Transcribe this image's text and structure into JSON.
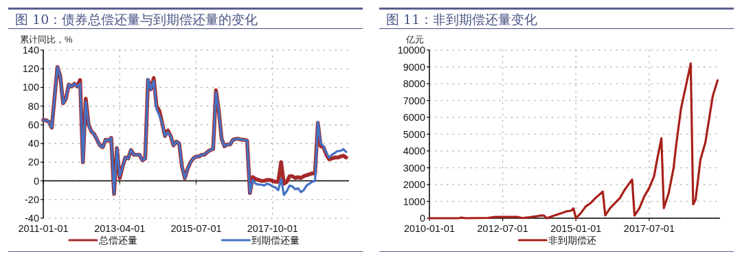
{
  "chart_data": [
    {
      "type": "line",
      "title": "图 10：债券总偿还量与到期偿还量的变化",
      "ylabel": "累计同比，%",
      "x": [
        "2011-01",
        "2011-02",
        "2011-03",
        "2011-04",
        "2011-05",
        "2011-06",
        "2011-07",
        "2011-08",
        "2011-09",
        "2011-10",
        "2011-11",
        "2011-12",
        "2012-01",
        "2012-02",
        "2012-03",
        "2012-04",
        "2012-05",
        "2012-06",
        "2012-07",
        "2012-08",
        "2012-09",
        "2012-10",
        "2012-11",
        "2012-12",
        "2013-01",
        "2013-02",
        "2013-03",
        "2013-04",
        "2013-05",
        "2013-06",
        "2013-07",
        "2013-08",
        "2013-09",
        "2013-10",
        "2013-11",
        "2013-12",
        "2014-01",
        "2014-02",
        "2014-03",
        "2014-04",
        "2014-05",
        "2014-06",
        "2014-07",
        "2014-08",
        "2014-09",
        "2014-10",
        "2014-11",
        "2014-12",
        "2015-01",
        "2015-02",
        "2015-03",
        "2015-04",
        "2015-05",
        "2015-06",
        "2015-07",
        "2015-08",
        "2015-09",
        "2015-10",
        "2015-11",
        "2015-12",
        "2016-01",
        "2016-02",
        "2016-03",
        "2016-04",
        "2016-05",
        "2016-06",
        "2016-07",
        "2016-08",
        "2016-09",
        "2016-10",
        "2016-11",
        "2016-12",
        "2017-01",
        "2017-02",
        "2017-03",
        "2017-04",
        "2017-05",
        "2017-06",
        "2017-07",
        "2017-08",
        "2017-09",
        "2017-10",
        "2017-11",
        "2017-12",
        "2018-01",
        "2018-02",
        "2018-03",
        "2018-04",
        "2018-05",
        "2018-06",
        "2018-07",
        "2018-08",
        "2018-09",
        "2018-10",
        "2018-11",
        "2018-12",
        "2019-01",
        "2019-02",
        "2019-03",
        "2019-04",
        "2019-05",
        "2019-06",
        "2019-07",
        "2019-08",
        "2019-09",
        "2019-10",
        "2019-11",
        "2019-12"
      ],
      "series": [
        {
          "name": "总偿还量",
          "color": "#a52a2a",
          "values": [
            65,
            65,
            63,
            57,
            90,
            122,
            112,
            83,
            88,
            103,
            101,
            104,
            101,
            108,
            20,
            88,
            60,
            53,
            50,
            44,
            38,
            36,
            44,
            43,
            46,
            -14,
            35,
            3,
            15,
            25,
            24,
            33,
            28,
            28,
            28,
            22,
            24,
            108,
            98,
            110,
            80,
            75,
            62,
            48,
            54,
            48,
            38,
            42,
            40,
            15,
            3,
            13,
            20,
            24,
            26,
            26,
            28,
            28,
            31,
            33,
            34,
            97,
            75,
            45,
            37,
            39,
            39,
            44,
            45,
            45,
            44,
            44,
            43,
            -13,
            4,
            2,
            1,
            0,
            0,
            1,
            1,
            0,
            -1,
            -1,
            20,
            -3,
            -1,
            5,
            5,
            3,
            4,
            3,
            5,
            6,
            7,
            8,
            8,
            62,
            37,
            36,
            28,
            23,
            24,
            25,
            25,
            26,
            27,
            25
          ]
        },
        {
          "name": "到期偿还量",
          "color": "#4472c4",
          "values": [
            65,
            65,
            63,
            57,
            90,
            122,
            112,
            83,
            88,
            103,
            101,
            104,
            101,
            104,
            20,
            85,
            60,
            53,
            50,
            44,
            38,
            36,
            44,
            43,
            46,
            -14,
            35,
            5,
            15,
            25,
            24,
            33,
            28,
            28,
            28,
            22,
            24,
            109,
            98,
            107,
            77,
            70,
            62,
            48,
            52,
            48,
            38,
            42,
            40,
            15,
            3,
            13,
            20,
            24,
            26,
            26,
            28,
            28,
            31,
            33,
            34,
            95,
            75,
            45,
            37,
            39,
            39,
            44,
            45,
            45,
            44,
            44,
            43,
            -13,
            1,
            -3,
            -4,
            -4,
            -5,
            -3,
            -4,
            -6,
            -7,
            -10,
            2,
            -15,
            -11,
            -5,
            -6,
            -9,
            -8,
            -12,
            -10,
            -5,
            -3,
            -1,
            0,
            63,
            40,
            37,
            30,
            25,
            28,
            30,
            32,
            32,
            34,
            31
          ]
        }
      ],
      "xlim": [
        "2011-01",
        "2020-01"
      ],
      "xticks": [
        "2011-01-01",
        "2013-04-01",
        "2015-07-01",
        "2017-10-01"
      ],
      "ylim": [
        -40,
        140
      ],
      "yticks": [
        -40,
        -20,
        0,
        20,
        40,
        60,
        80,
        100,
        120,
        140
      ],
      "grid": true,
      "legend": "bottom",
      "line_style": "solid"
    },
    {
      "type": "line",
      "title": "图 11：非到期偿还量变化",
      "ylabel": "亿元",
      "x": [
        "2010-01",
        "2011-01",
        "2011-02",
        "2011-04",
        "2012-01",
        "2012-04",
        "2013-01",
        "2013-03",
        "2013-06",
        "2013-09",
        "2013-11",
        "2013-12",
        "2014-01",
        "2014-04",
        "2014-07",
        "2014-09",
        "2014-11",
        "2014-12",
        "2015-01",
        "2015-03",
        "2015-05",
        "2015-07",
        "2015-09",
        "2015-12",
        "2016-01",
        "2016-03",
        "2016-05",
        "2016-07",
        "2016-09",
        "2016-12",
        "2017-01",
        "2017-03",
        "2017-05",
        "2017-07",
        "2017-09",
        "2017-10",
        "2017-12",
        "2018-01",
        "2018-03",
        "2018-05",
        "2018-06",
        "2018-08",
        "2018-12",
        "2019-01",
        "2019-02",
        "2019-04",
        "2019-06",
        "2019-09",
        "2019-11"
      ],
      "series": [
        {
          "name": "非到期偿还",
          "color": "#a8201a",
          "values": [
            0,
            0,
            40,
            0,
            20,
            80,
            80,
            10,
            60,
            120,
            170,
            150,
            0,
            150,
            300,
            400,
            450,
            580,
            0,
            300,
            700,
            900,
            1200,
            1580,
            170,
            600,
            900,
            1200,
            1700,
            2300,
            160,
            600,
            1300,
            1800,
            2500,
            3300,
            4750,
            600,
            1500,
            3000,
            4300,
            6500,
            9200,
            830,
            1100,
            3500,
            4500,
            7250,
            8200
          ]
        }
      ],
      "xlim": [
        "2010-01",
        "2019-12"
      ],
      "xticks": [
        "2010-01-01",
        "2012-07-01",
        "2015-01-01",
        "2017-07-01"
      ],
      "ylim": [
        0,
        10000
      ],
      "yticks": [
        0,
        1000,
        2000,
        3000,
        4000,
        5000,
        6000,
        7000,
        8000,
        9000,
        10000
      ],
      "grid": true,
      "legend": "bottom",
      "line_style": "solid"
    }
  ]
}
